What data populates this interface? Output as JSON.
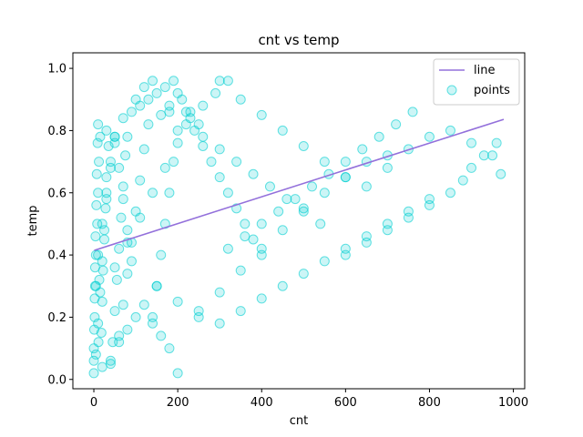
{
  "chart_data": {
    "type": "scatter",
    "title": "cnt vs temp",
    "xlabel": "cnt",
    "ylabel": "temp",
    "xlim": [
      -50,
      1027
    ],
    "ylim": [
      -0.03,
      1.05
    ],
    "xticks": [
      0,
      200,
      400,
      600,
      800,
      1000
    ],
    "yticks": [
      0.0,
      0.2,
      0.4,
      0.6,
      0.8,
      1.0
    ],
    "xtick_labels": [
      "0",
      "200",
      "400",
      "600",
      "800",
      "1000"
    ],
    "ytick_labels": [
      "0.0",
      "0.2",
      "0.4",
      "0.6",
      "0.8",
      "1.0"
    ],
    "grid": false,
    "legend_position": "top-right",
    "colors": {
      "points": "#00ced1",
      "line": "#9370db"
    },
    "series": [
      {
        "name": "line",
        "kind": "line",
        "x": [
          1,
          977
        ],
        "y": [
          0.415,
          0.836
        ]
      },
      {
        "name": "points",
        "kind": "scatter",
        "x": [
          0,
          0,
          2,
          3,
          5,
          8,
          10,
          12,
          15,
          18,
          20,
          22,
          25,
          28,
          30,
          35,
          40,
          45,
          50,
          55,
          60,
          65,
          70,
          75,
          80,
          5,
          10,
          15,
          20,
          25,
          30,
          40,
          50,
          60,
          70,
          80,
          90,
          100,
          110,
          120,
          130,
          140,
          150,
          160,
          170,
          180,
          190,
          200,
          100,
          120,
          140,
          160,
          180,
          200,
          220,
          240,
          260,
          280,
          300,
          320,
          340,
          360,
          380,
          400,
          150,
          200,
          250,
          300,
          350,
          400,
          450,
          500,
          550,
          600,
          650,
          700,
          300,
          350,
          400,
          450,
          500,
          550,
          600,
          650,
          700,
          750,
          800,
          850,
          900,
          950,
          970,
          20,
          40,
          60,
          80,
          100,
          120,
          140,
          160,
          180,
          200,
          5,
          10,
          20,
          30,
          40,
          50,
          60,
          70,
          80,
          90,
          250,
          300,
          350,
          400,
          450,
          500,
          550,
          600,
          650,
          700,
          750,
          800,
          10,
          30,
          50,
          70,
          90,
          110,
          130,
          150,
          170,
          190,
          210,
          230,
          250,
          600,
          650,
          700,
          750,
          800,
          850,
          880,
          900,
          930,
          960,
          0,
          1,
          2,
          3,
          4,
          6,
          7,
          9,
          11,
          13,
          180,
          220,
          260,
          300,
          340,
          380,
          420,
          460,
          500,
          540,
          320,
          360,
          400,
          440,
          480,
          520,
          560,
          600,
          640,
          680,
          720,
          760,
          50,
          80,
          110,
          140,
          170,
          200,
          230,
          260,
          290,
          320
        ],
        "y": [
          0.02,
          0.1,
          0.2,
          0.3,
          0.4,
          0.5,
          0.6,
          0.7,
          0.78,
          0.15,
          0.25,
          0.35,
          0.45,
          0.55,
          0.65,
          0.75,
          0.05,
          0.12,
          0.22,
          0.32,
          0.42,
          0.52,
          0.62,
          0.72,
          0.78,
          0.08,
          0.18,
          0.28,
          0.38,
          0.48,
          0.58,
          0.68,
          0.76,
          0.14,
          0.24,
          0.34,
          0.44,
          0.54,
          0.64,
          0.74,
          0.82,
          0.2,
          0.3,
          0.4,
          0.5,
          0.6,
          0.7,
          0.8,
          0.9,
          0.94,
          0.96,
          0.85,
          0.88,
          0.92,
          0.86,
          0.8,
          0.75,
          0.7,
          0.65,
          0.6,
          0.55,
          0.5,
          0.45,
          0.4,
          0.3,
          0.25,
          0.22,
          0.28,
          0.35,
          0.42,
          0.48,
          0.55,
          0.6,
          0.65,
          0.7,
          0.72,
          0.96,
          0.9,
          0.85,
          0.8,
          0.75,
          0.7,
          0.65,
          0.62,
          0.68,
          0.74,
          0.78,
          0.8,
          0.76,
          0.72,
          0.66,
          0.04,
          0.06,
          0.12,
          0.16,
          0.2,
          0.24,
          0.18,
          0.14,
          0.1,
          0.02,
          0.3,
          0.4,
          0.5,
          0.6,
          0.7,
          0.78,
          0.68,
          0.58,
          0.48,
          0.38,
          0.2,
          0.18,
          0.22,
          0.26,
          0.3,
          0.34,
          0.38,
          0.42,
          0.46,
          0.5,
          0.54,
          0.58,
          0.82,
          0.8,
          0.78,
          0.84,
          0.86,
          0.88,
          0.9,
          0.92,
          0.94,
          0.96,
          0.9,
          0.86,
          0.82,
          0.4,
          0.44,
          0.48,
          0.52,
          0.56,
          0.6,
          0.64,
          0.68,
          0.72,
          0.76,
          0.06,
          0.16,
          0.26,
          0.36,
          0.46,
          0.56,
          0.66,
          0.76,
          0.12,
          0.32,
          0.86,
          0.82,
          0.78,
          0.74,
          0.7,
          0.66,
          0.62,
          0.58,
          0.54,
          0.5,
          0.42,
          0.46,
          0.5,
          0.54,
          0.58,
          0.62,
          0.66,
          0.7,
          0.74,
          0.78,
          0.82,
          0.86,
          0.36,
          0.44,
          0.52,
          0.6,
          0.68,
          0.76,
          0.84,
          0.88,
          0.92,
          0.96
        ]
      }
    ]
  }
}
